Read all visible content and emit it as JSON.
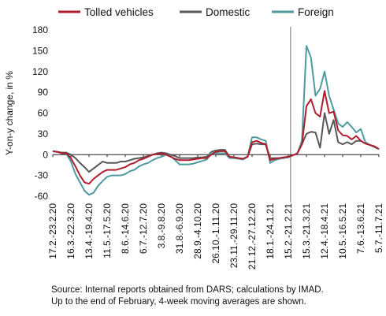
{
  "chart_data": {
    "type": "line",
    "ylabel": "Y-on-y change, in %",
    "ylim": [
      -60,
      180
    ],
    "yticks": [
      -60,
      -30,
      0,
      30,
      60,
      90,
      120,
      150,
      180
    ],
    "legend_position": "top",
    "grid": false,
    "x_labels": [
      "17.2.-23.2.20",
      "16.3.-22.3.20",
      "13.4.-19.4.20",
      "11.5.-17.5.20",
      "8.6.-14.6.20",
      "6.7.-12.7.20",
      "3.8.-9.8.20",
      "31.8.-6.9.20",
      "28.9.-4.10.20",
      "26.10.-1.11.20",
      "23.11.-29.11.20",
      "21.12.-27.12.20",
      "18.1.-24.1.21",
      "15.2.-21.2.21",
      "15.3.-21.3.21",
      "12.4.-18.4.21",
      "10.5.-16.5.21",
      "7.6.-13.6.21",
      "5.7.-11.7.21"
    ],
    "x_label_weeks": [
      0,
      4,
      8,
      12,
      16,
      20,
      24,
      28,
      32,
      36,
      40,
      44,
      48,
      52,
      56,
      60,
      64,
      68,
      72
    ],
    "divider_week": 52.5,
    "series": [
      {
        "name": "Tolled vehicles",
        "color": "#b01c2e",
        "values": [
          5,
          4,
          2,
          2,
          -5,
          -17,
          -30,
          -40,
          -42,
          -35,
          -30,
          -25,
          -22,
          -22,
          -22,
          -20,
          -18,
          -14,
          -12,
          -8,
          -6,
          -3,
          0,
          1,
          2,
          0,
          -3,
          -6,
          -8,
          -8,
          -8,
          -7,
          -6,
          -5,
          -5,
          0,
          4,
          5,
          5,
          -3,
          -4,
          -5,
          -6,
          -3,
          18,
          20,
          17,
          15,
          -8,
          -6,
          -5,
          -4,
          -3,
          -1,
          2,
          15,
          70,
          80,
          60,
          55,
          92,
          60,
          62,
          35,
          28,
          27,
          22,
          27,
          20,
          16,
          14,
          12,
          8
        ]
      },
      {
        "name": "Domestic",
        "color": "#575757",
        "values": [
          5,
          4,
          3,
          3,
          0,
          -5,
          -12,
          -18,
          -25,
          -20,
          -15,
          -10,
          -12,
          -12,
          -12,
          -10,
          -10,
          -8,
          -6,
          -5,
          -4,
          -2,
          0,
          2,
          3,
          2,
          0,
          -2,
          -5,
          -5,
          -5,
          -5,
          -4,
          -4,
          -3,
          4,
          6,
          7,
          7,
          -3,
          -4,
          -5,
          -6,
          -3,
          15,
          16,
          15,
          15,
          -5,
          -5,
          -5,
          -4,
          -3,
          -1,
          2,
          15,
          30,
          33,
          32,
          10,
          60,
          30,
          50,
          18,
          15,
          18,
          15,
          20,
          20,
          16,
          14,
          11,
          8
        ]
      },
      {
        "name": "Foreign",
        "color": "#4f9a9e",
        "values": [
          5,
          4,
          2,
          1,
          -10,
          -28,
          -40,
          -52,
          -58,
          -55,
          -45,
          -38,
          -32,
          -30,
          -30,
          -30,
          -28,
          -24,
          -22,
          -17,
          -14,
          -12,
          -8,
          -5,
          -3,
          0,
          -2,
          -8,
          -14,
          -14,
          -14,
          -13,
          -11,
          -9,
          -7,
          3,
          2,
          2,
          2,
          -5,
          -5,
          -6,
          -7,
          -3,
          25,
          25,
          22,
          20,
          -12,
          -8,
          -6,
          -5,
          -4,
          -1,
          2,
          20,
          157,
          140,
          85,
          95,
          120,
          85,
          65,
          45,
          40,
          47,
          40,
          32,
          37,
          18,
          14,
          12,
          8
        ]
      }
    ]
  },
  "source": {
    "line1": "Source: Internal reports obtained from DARS; calculations by IMAD.",
    "line2": "Up to the end of February, 4-week moving averages are shown."
  }
}
